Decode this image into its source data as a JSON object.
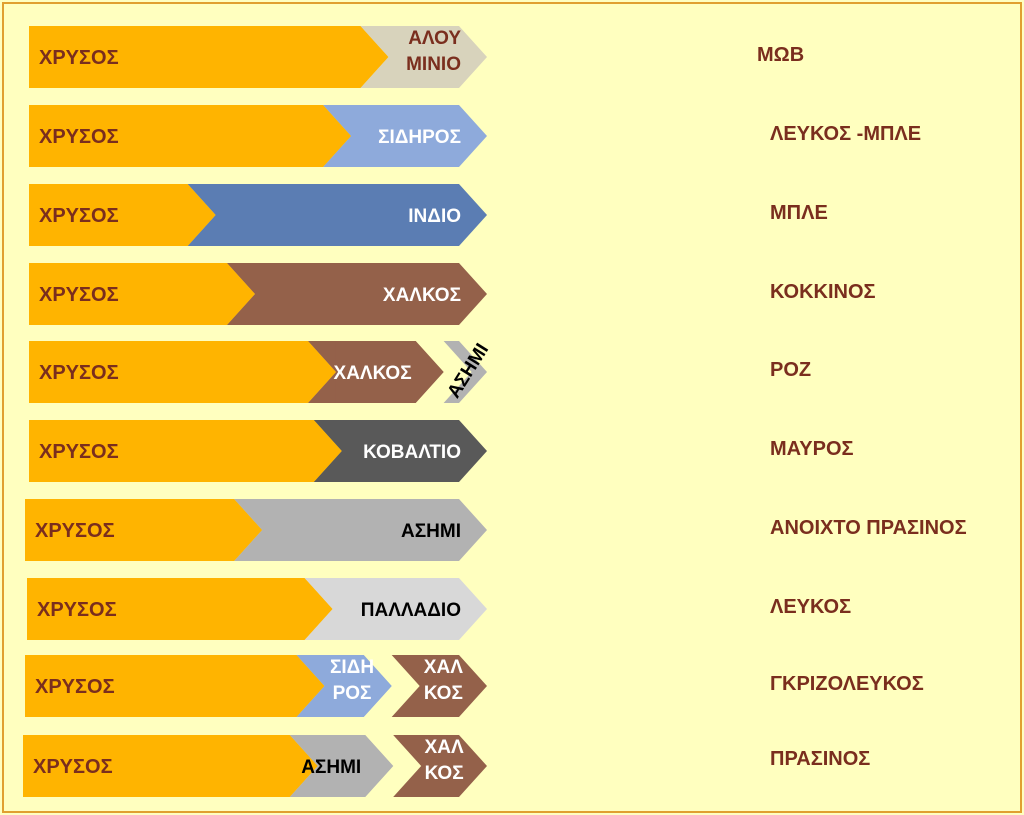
{
  "colors": {
    "gold": "#ffb400",
    "aluminium": "#d8d3bc",
    "iron": "#8eaadb",
    "indium": "#5b7db3",
    "copper": "#94614a",
    "silver": "#b2b2b2",
    "cobalt": "#595959",
    "palladium": "#d8d8d8"
  },
  "rows": [
    {
      "gold_label": "ΧΡΥΣΟΣ",
      "segments": [
        {
          "lines": [
            "ΑΛΟΥ",
            "ΜΙΝΙΟ"
          ],
          "color": "aluminium",
          "text_color": "#7a2e1e",
          "share": 0.2765
        }
      ],
      "result": "ΜΩΒ"
    },
    {
      "gold_label": "ΧΡΥΣΟΣ",
      "segments": [
        {
          "lines": [
            "ΣΙΔΗΡΟΣ"
          ],
          "color": "iron",
          "text_color": "#ffffff",
          "share": 0.3581
        }
      ],
      "result": "ΛΕΥΚΟΣ -ΜΠΛΕ"
    },
    {
      "gold_label": "ΧΡΥΣΟΣ",
      "segments": [
        {
          "lines": [
            "ΙΝΔΙΟ"
          ],
          "color": "indium",
          "text_color": "#ffffff",
          "share": 0.6537
        }
      ],
      "result": "ΜΠΛΕ"
    },
    {
      "gold_label": "ΧΡΥΣΟΣ",
      "segments": [
        {
          "lines": [
            "ΧΑΛΚΟΣ"
          ],
          "color": "copper",
          "text_color": "#ffffff",
          "share": 0.5679
        }
      ],
      "result": "ΚΟΚΚΙΝΟΣ"
    },
    {
      "gold_label": "ΧΡΥΣΟΣ",
      "segments": [
        {
          "lines": [
            "ΧΑΛΚΟΣ"
          ],
          "color": "copper",
          "text_color": "#ffffff",
          "share": 0.2963
        },
        {
          "lines": [
            "ΑΣΗΜΙ"
          ],
          "color": "silver",
          "text_color": "#000000",
          "share": 0.0947,
          "rotated": true
        }
      ],
      "result": "ΡΟΖ"
    },
    {
      "gold_label": "ΧΡΥΣΟΣ",
      "segments": [
        {
          "lines": [
            "ΚΟΒΑΛΤΙΟ"
          ],
          "color": "cobalt",
          "text_color": "#ffffff",
          "share": 0.3783
        }
      ],
      "result": "ΜΑΥΡΟΣ"
    },
    {
      "gold_label": "ΧΡΥΣΟΣ",
      "segments": [
        {
          "lines": [
            "ΑΣΗΜΙ"
          ],
          "color": "silver",
          "text_color": "#000000",
          "share": 0.5476
        }
      ],
      "result": "ΑΝΟΙΧΤΟ ΠΡΑΣΙΝΟΣ"
    },
    {
      "gold_label": "ΧΡΥΣΟΣ",
      "segments": [
        {
          "lines": [
            "ΠΑΛΛΑΔΙΟ"
          ],
          "color": "palladium",
          "text_color": "#000000",
          "share": 0.3968
        }
      ],
      "result": "ΛΕΥΚΟΣ"
    },
    {
      "gold_label": "ΧΡΥΣΟΣ",
      "segments": [
        {
          "lines": [
            "ΣΙΔΗ",
            "ΡΟΣ"
          ],
          "color": "iron",
          "text_color": "#ffffff",
          "share": 0.2063
        },
        {
          "lines": [
            "ΧΑΛ",
            "ΚΟΣ"
          ],
          "color": "copper",
          "text_color": "#ffffff",
          "share": 0.2063
        }
      ],
      "result": "ΓΚΡΙΖΟΛΕΥΚΟΣ"
    },
    {
      "gold_label": "ΧΡΥΣΟΣ",
      "segments": [
        {
          "lines": [
            "ΑΣΗΜΙ"
          ],
          "color": "silver",
          "text_color": "#000000",
          "share": 0.2232
        },
        {
          "lines": [
            "ΧΑΛ",
            "ΚΟΣ"
          ],
          "color": "copper",
          "text_color": "#ffffff",
          "share": 0.2022
        }
      ],
      "result": "ΠΡΑΣΙΝΟΣ"
    }
  ]
}
